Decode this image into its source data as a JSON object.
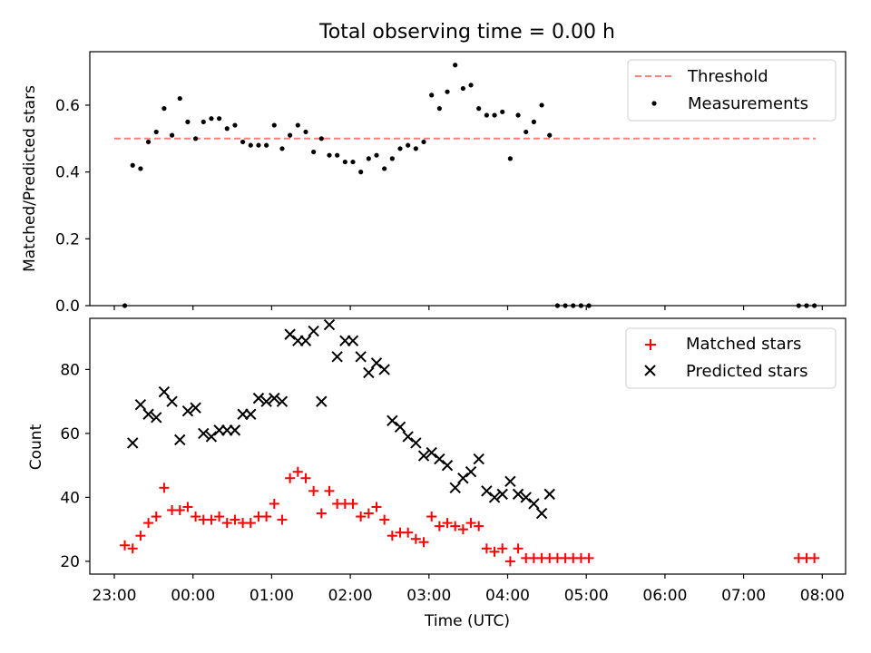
{
  "chart_data": [
    {
      "type": "scatter",
      "title": "Total observing time = 0.00 h",
      "xlabel": "",
      "ylabel": "Matched/Predicted stars",
      "ylim": [
        0,
        0.76
      ],
      "yticks": [
        "0.0",
        "0.2",
        "0.4",
        "0.6"
      ],
      "legend_position": "top-right",
      "threshold": {
        "name": "Threshold",
        "value": 0.5,
        "x_range": [
          "23:00",
          "07:55"
        ],
        "color": "#ff7f7f",
        "style": "dashed"
      },
      "series": [
        {
          "name": "Measurements",
          "color": "#000000",
          "marker": "dot",
          "points": [
            [
              "23:08",
              0.0
            ],
            [
              "23:14",
              0.42
            ],
            [
              "23:20",
              0.41
            ],
            [
              "23:26",
              0.49
            ],
            [
              "23:32",
              0.52
            ],
            [
              "23:38",
              0.59
            ],
            [
              "23:44",
              0.51
            ],
            [
              "23:50",
              0.62
            ],
            [
              "23:56",
              0.55
            ],
            [
              "00:02",
              0.5
            ],
            [
              "00:08",
              0.55
            ],
            [
              "00:14",
              0.56
            ],
            [
              "00:20",
              0.56
            ],
            [
              "00:26",
              0.53
            ],
            [
              "00:32",
              0.54
            ],
            [
              "00:38",
              0.49
            ],
            [
              "00:44",
              0.48
            ],
            [
              "00:50",
              0.48
            ],
            [
              "00:56",
              0.48
            ],
            [
              "01:02",
              0.54
            ],
            [
              "01:08",
              0.47
            ],
            [
              "01:14",
              0.51
            ],
            [
              "01:20",
              0.54
            ],
            [
              "01:26",
              0.52
            ],
            [
              "01:32",
              0.46
            ],
            [
              "01:38",
              0.5
            ],
            [
              "01:44",
              0.45
            ],
            [
              "01:50",
              0.45
            ],
            [
              "01:56",
              0.43
            ],
            [
              "02:02",
              0.43
            ],
            [
              "02:08",
              0.4
            ],
            [
              "02:14",
              0.44
            ],
            [
              "02:20",
              0.45
            ],
            [
              "02:26",
              0.41
            ],
            [
              "02:32",
              0.44
            ],
            [
              "02:38",
              0.47
            ],
            [
              "02:44",
              0.48
            ],
            [
              "02:50",
              0.47
            ],
            [
              "02:56",
              0.49
            ],
            [
              "03:02",
              0.63
            ],
            [
              "03:08",
              0.59
            ],
            [
              "03:14",
              0.64
            ],
            [
              "03:20",
              0.72
            ],
            [
              "03:26",
              0.65
            ],
            [
              "03:32",
              0.66
            ],
            [
              "03:38",
              0.59
            ],
            [
              "03:44",
              0.57
            ],
            [
              "03:50",
              0.57
            ],
            [
              "03:56",
              0.58
            ],
            [
              "04:02",
              0.44
            ],
            [
              "04:08",
              0.57
            ],
            [
              "04:14",
              0.52
            ],
            [
              "04:20",
              0.55
            ],
            [
              "04:26",
              0.6
            ],
            [
              "04:32",
              0.51
            ],
            [
              "04:38",
              0.0
            ],
            [
              "04:44",
              0.0
            ],
            [
              "04:50",
              0.0
            ],
            [
              "04:56",
              0.0
            ],
            [
              "05:02",
              0.0
            ],
            [
              "07:42",
              0.0
            ],
            [
              "07:48",
              0.0
            ],
            [
              "07:54",
              0.0
            ]
          ]
        }
      ]
    },
    {
      "type": "scatter",
      "xlabel": "Time (UTC)",
      "ylabel": "Count",
      "ylim": [
        16,
        96
      ],
      "yticks": [
        "20",
        "40",
        "60",
        "80"
      ],
      "xticks": [
        "23:00",
        "00:00",
        "01:00",
        "02:00",
        "03:00",
        "04:00",
        "05:00",
        "06:00",
        "07:00",
        "08:00"
      ],
      "legend_position": "top-right",
      "series": [
        {
          "name": "Matched stars",
          "color": "#ff0000",
          "marker": "plus",
          "points": [
            [
              "23:08",
              25
            ],
            [
              "23:14",
              24
            ],
            [
              "23:20",
              28
            ],
            [
              "23:26",
              32
            ],
            [
              "23:32",
              34
            ],
            [
              "23:38",
              43
            ],
            [
              "23:44",
              36
            ],
            [
              "23:50",
              36
            ],
            [
              "23:56",
              37
            ],
            [
              "00:02",
              34
            ],
            [
              "00:08",
              33
            ],
            [
              "00:14",
              33
            ],
            [
              "00:20",
              34
            ],
            [
              "00:26",
              32
            ],
            [
              "00:32",
              33
            ],
            [
              "00:38",
              32
            ],
            [
              "00:44",
              32
            ],
            [
              "00:50",
              34
            ],
            [
              "00:56",
              34
            ],
            [
              "01:02",
              38
            ],
            [
              "01:08",
              33
            ],
            [
              "01:14",
              46
            ],
            [
              "01:20",
              48
            ],
            [
              "01:26",
              46
            ],
            [
              "01:32",
              42
            ],
            [
              "01:38",
              35
            ],
            [
              "01:44",
              42
            ],
            [
              "01:50",
              38
            ],
            [
              "01:56",
              38
            ],
            [
              "02:02",
              38
            ],
            [
              "02:08",
              34
            ],
            [
              "02:14",
              35
            ],
            [
              "02:20",
              37
            ],
            [
              "02:26",
              33
            ],
            [
              "02:32",
              28
            ],
            [
              "02:38",
              29
            ],
            [
              "02:44",
              29
            ],
            [
              "02:50",
              27
            ],
            [
              "02:56",
              26
            ],
            [
              "03:02",
              34
            ],
            [
              "03:08",
              31
            ],
            [
              "03:14",
              32
            ],
            [
              "03:20",
              31
            ],
            [
              "03:26",
              30
            ],
            [
              "03:32",
              32
            ],
            [
              "03:38",
              31
            ],
            [
              "03:44",
              24
            ],
            [
              "03:50",
              23
            ],
            [
              "03:56",
              24
            ],
            [
              "04:02",
              20
            ],
            [
              "04:08",
              24
            ],
            [
              "04:14",
              21
            ],
            [
              "04:20",
              21
            ],
            [
              "04:26",
              21
            ],
            [
              "04:32",
              21
            ],
            [
              "04:38",
              21
            ],
            [
              "04:44",
              21
            ],
            [
              "04:50",
              21
            ],
            [
              "04:56",
              21
            ],
            [
              "05:02",
              21
            ],
            [
              "07:42",
              21
            ],
            [
              "07:48",
              21
            ],
            [
              "07:54",
              21
            ]
          ]
        },
        {
          "name": "Predicted stars",
          "color": "#000000",
          "marker": "x",
          "points": [
            [
              "23:14",
              57
            ],
            [
              "23:20",
              69
            ],
            [
              "23:26",
              66
            ],
            [
              "23:32",
              65
            ],
            [
              "23:38",
              73
            ],
            [
              "23:44",
              70
            ],
            [
              "23:50",
              58
            ],
            [
              "23:56",
              67
            ],
            [
              "00:02",
              68
            ],
            [
              "00:08",
              60
            ],
            [
              "00:14",
              59
            ],
            [
              "00:20",
              61
            ],
            [
              "00:26",
              61
            ],
            [
              "00:32",
              61
            ],
            [
              "00:38",
              66
            ],
            [
              "00:44",
              66
            ],
            [
              "00:50",
              71
            ],
            [
              "00:56",
              70
            ],
            [
              "01:02",
              71
            ],
            [
              "01:08",
              70
            ],
            [
              "01:14",
              91
            ],
            [
              "01:20",
              89
            ],
            [
              "01:26",
              89
            ],
            [
              "01:32",
              92
            ],
            [
              "01:38",
              70
            ],
            [
              "01:44",
              94
            ],
            [
              "01:50",
              84
            ],
            [
              "01:56",
              89
            ],
            [
              "02:02",
              89
            ],
            [
              "02:08",
              84
            ],
            [
              "02:14",
              79
            ],
            [
              "02:20",
              82
            ],
            [
              "02:26",
              80
            ],
            [
              "02:32",
              64
            ],
            [
              "02:38",
              62
            ],
            [
              "02:44",
              59
            ],
            [
              "02:50",
              57
            ],
            [
              "02:56",
              53
            ],
            [
              "03:02",
              54
            ],
            [
              "03:08",
              52
            ],
            [
              "03:14",
              50
            ],
            [
              "03:20",
              43
            ],
            [
              "03:26",
              46
            ],
            [
              "03:32",
              48
            ],
            [
              "03:38",
              52
            ],
            [
              "03:44",
              42
            ],
            [
              "03:50",
              40
            ],
            [
              "03:56",
              41
            ],
            [
              "04:02",
              45
            ],
            [
              "04:08",
              41
            ],
            [
              "04:14",
              40
            ],
            [
              "04:20",
              38
            ],
            [
              "04:26",
              35
            ],
            [
              "04:32",
              41
            ]
          ]
        }
      ]
    }
  ]
}
